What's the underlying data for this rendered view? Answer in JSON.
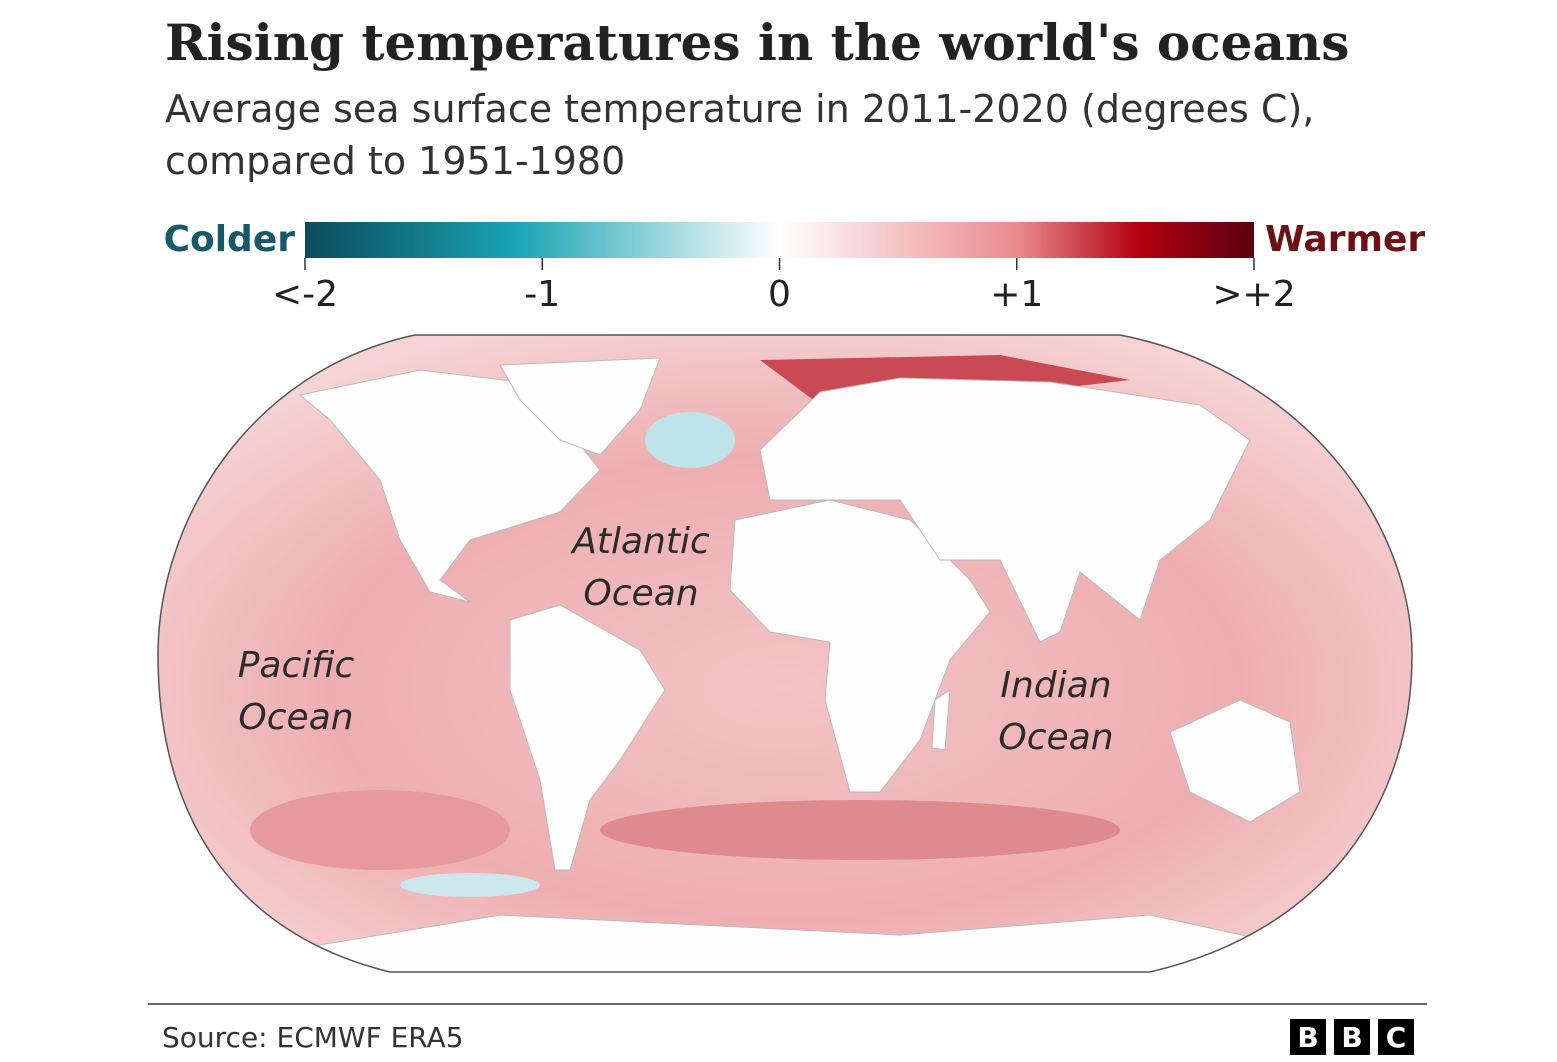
{
  "header": {
    "title": "Rising temperatures in the world's oceans",
    "subtitle": [
      "Average sea surface temperature in 2011-2020 (degrees C),",
      "compared to 1951-1980"
    ]
  },
  "legend": {
    "low_label": "Colder",
    "high_label": "Warmer",
    "range": [
      -2,
      2
    ],
    "ticks": [
      {
        "value": -2,
        "label": "<-2"
      },
      -1,
      0,
      {
        "value": 1,
        "label": "+1"
      },
      {
        "value": 2,
        "label": ">+2"
      }
    ]
  },
  "map": {
    "labels": [
      [
        "Atlantic",
        "Ocean"
      ],
      [
        "Pacific",
        "Ocean"
      ],
      [
        "Indian",
        "Ocean"
      ]
    ]
  },
  "footer": {
    "source": "Source: ECMWF ERA5",
    "logo": [
      "B",
      "B",
      "C"
    ]
  }
}
